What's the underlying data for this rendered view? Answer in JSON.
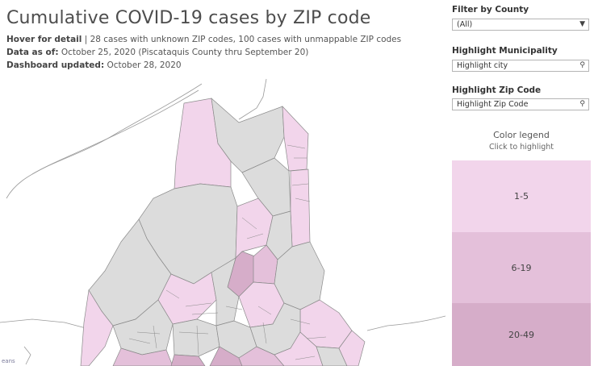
{
  "header": {
    "title": "Cumulative COVID-19 cases by ZIP code",
    "hover_label": "Hover for detail",
    "hover_text": " | 28 cases with unknown ZIP codes, 100 cases with unmappable ZIP codes",
    "data_as_of_label": "Data as of:",
    "data_as_of_text": " October 25, 2020 (Piscataquis County thru September 20)",
    "updated_label": "Dashboard updated:",
    "updated_text": " October 28, 2020"
  },
  "filters": {
    "county": {
      "label": "Filter by County",
      "value": "(All)",
      "icon": "chevron-down-icon"
    },
    "municipality": {
      "label": "Highlight Municipality",
      "placeholder": "Highlight city",
      "icon": "search-icon"
    },
    "zip": {
      "label": "Highlight Zip Code",
      "placeholder": "Highlight Zip Code",
      "icon": "search-icon"
    }
  },
  "legend": {
    "title": "Color legend",
    "subtitle": "Click to highlight",
    "items": [
      {
        "label": "1-5",
        "color": "#f2d5eb"
      },
      {
        "label": "6-19",
        "color": "#e4c0da"
      },
      {
        "label": "20-49",
        "color": "#d6adc9"
      }
    ]
  },
  "map": {
    "state_label": "eans",
    "colors": {
      "no_cases": "#dcdcdc",
      "band_1_5": "#f2d5eb",
      "band_6_19": "#e4c0da",
      "band_20_49": "#d6adc9",
      "border": "#8a8a8a",
      "coast": "#9a9a9a"
    }
  }
}
